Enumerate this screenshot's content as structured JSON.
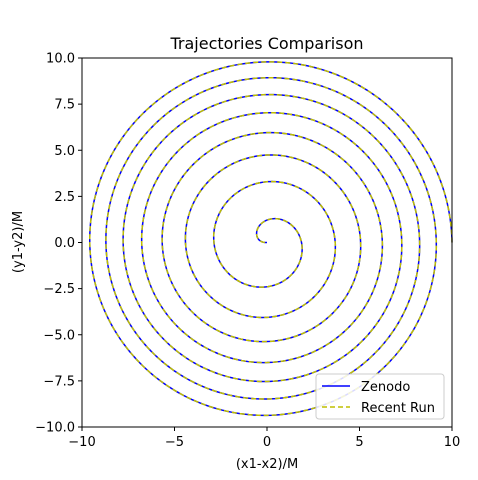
{
  "chart_data": {
    "type": "line",
    "title": "Trajectories Comparison",
    "xlabel": "(x1-x2)/M",
    "ylabel": "(y1-y2)/M",
    "xlim": [
      -10,
      10
    ],
    "ylim": [
      -10,
      10
    ],
    "xticks": [
      -10,
      -5,
      0,
      5,
      10
    ],
    "yticks": [
      -10.0,
      -7.5,
      -5.0,
      -2.5,
      0.0,
      2.5,
      5.0,
      7.5,
      10.0
    ],
    "xtick_labels": [
      "−10",
      "−5",
      "0",
      "5",
      "10"
    ],
    "ytick_labels": [
      "−10.0",
      "−7.5",
      "−5.0",
      "−2.5",
      "0.0",
      "2.5",
      "5.0",
      "7.5",
      "10.0"
    ],
    "grid": false,
    "legend_position": "lower right",
    "spiral": {
      "start": [
        10.0,
        0.0
      ],
      "end": [
        0.0,
        0.0
      ],
      "turns": 7.5,
      "direction": "counterclockwise",
      "outer_radius": 10.0
    },
    "series": [
      {
        "name": "Zenodo",
        "color": "#0000ff",
        "style": "solid"
      },
      {
        "name": "Recent Run",
        "color": "#bfbf00",
        "style": "dashed"
      }
    ]
  }
}
